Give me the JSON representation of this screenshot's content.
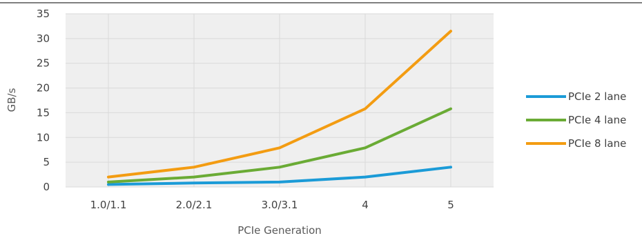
{
  "chart_data": {
    "type": "line",
    "categories": [
      "1.0/1.1",
      "2.0/2.1",
      "3.0/3.1",
      "4",
      "5"
    ],
    "series": [
      {
        "name": "PCIe 2 lane",
        "values": [
          0.5,
          0.8,
          1.0,
          2.0,
          4.0
        ],
        "color": "#1b9bd7"
      },
      {
        "name": "PCIe 4 lane",
        "values": [
          1.0,
          2.0,
          4.0,
          7.9,
          15.8
        ],
        "color": "#6aab35"
      },
      {
        "name": "PCIe 8 lane",
        "values": [
          2.0,
          4.0,
          7.9,
          15.8,
          31.5
        ],
        "color": "#f39c12"
      }
    ],
    "xlabel": "PCIe Generation",
    "ylabel": "GB/s",
    "ylim": [
      0,
      35
    ],
    "yticks": [
      0,
      5,
      10,
      15,
      20,
      25,
      30,
      35
    ],
    "grid": true,
    "legend_position": "right",
    "colors": {
      "plot_background": "#efefef",
      "gridline": "#d9d9d9",
      "top_border": "#7f7f7f"
    }
  }
}
